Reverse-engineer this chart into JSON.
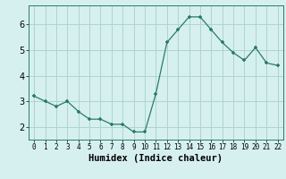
{
  "x": [
    0,
    1,
    2,
    3,
    4,
    5,
    6,
    7,
    8,
    9,
    10,
    11,
    12,
    13,
    14,
    15,
    16,
    17,
    18,
    19,
    20,
    21,
    22
  ],
  "y": [
    3.2,
    3.0,
    2.8,
    3.0,
    2.6,
    2.3,
    2.3,
    2.1,
    2.1,
    1.8,
    1.8,
    3.3,
    5.3,
    5.8,
    6.3,
    6.3,
    5.8,
    5.3,
    4.9,
    4.6,
    5.1,
    4.5,
    4.4
  ],
  "line_color": "#2a7a6e",
  "marker": "+",
  "marker_size": 4,
  "bg_color": "#d6f0ef",
  "grid_color": "#aed4d0",
  "xlabel": "Humidex (Indice chaleur)",
  "ylim": [
    1.5,
    6.75
  ],
  "xlim": [
    -0.5,
    22.5
  ],
  "yticks": [
    2,
    3,
    4,
    5,
    6
  ],
  "xticks": [
    0,
    1,
    2,
    3,
    4,
    5,
    6,
    7,
    8,
    9,
    10,
    11,
    12,
    13,
    14,
    15,
    16,
    17,
    18,
    19,
    20,
    21,
    22
  ]
}
